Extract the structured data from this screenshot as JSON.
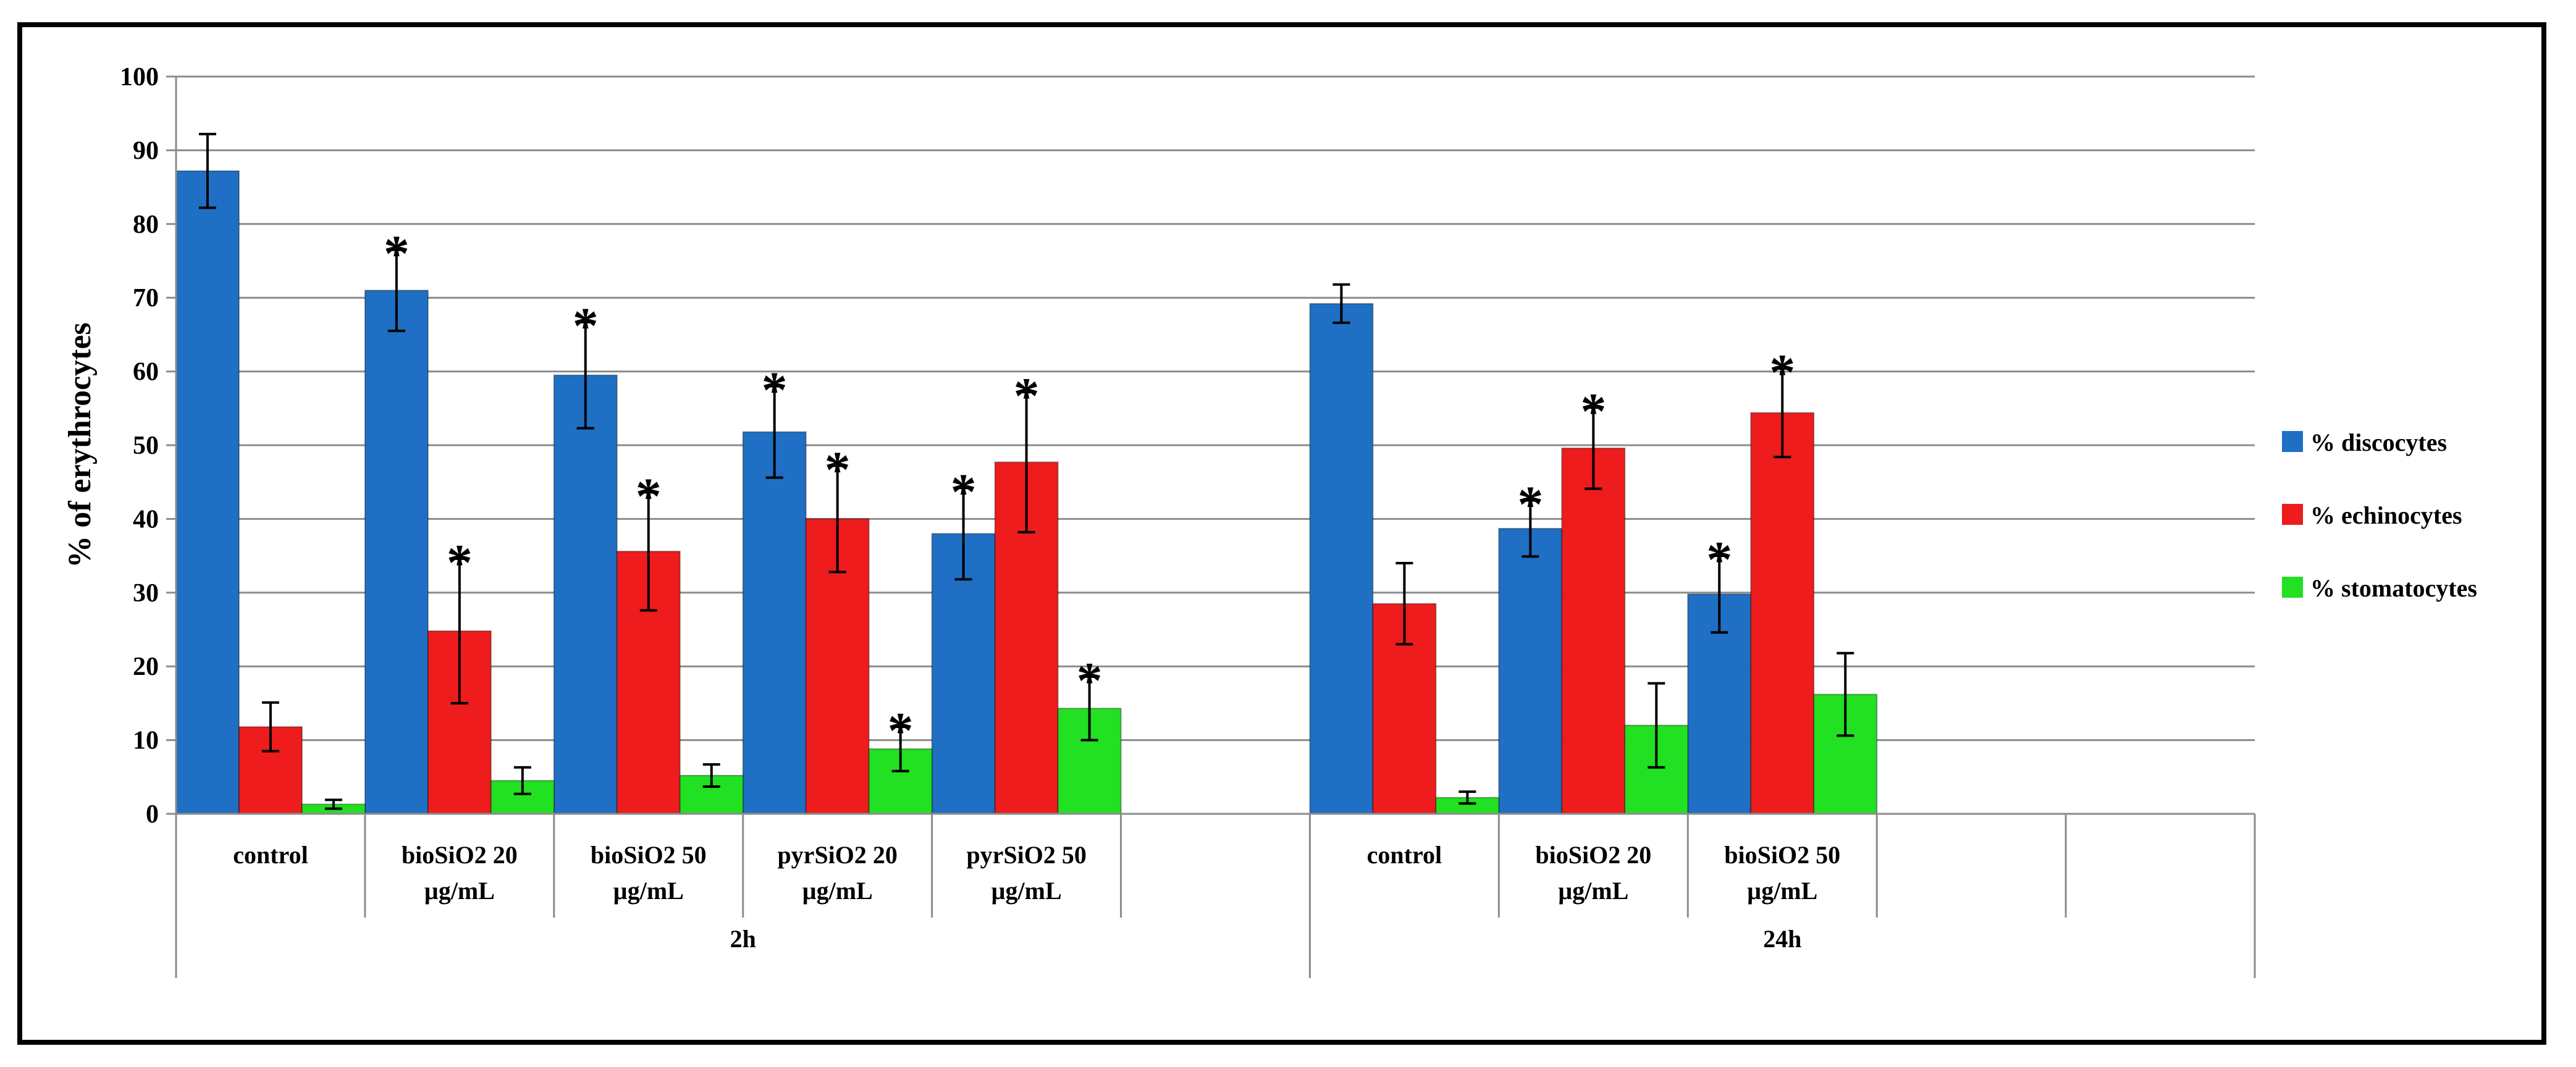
{
  "chart_data": {
    "type": "bar",
    "title": "",
    "ylabel": "% of erythrocytes",
    "ylim": [
      0,
      100
    ],
    "yticks": [
      0,
      10,
      20,
      30,
      40,
      50,
      60,
      70,
      80,
      90,
      100
    ],
    "grid": true,
    "legend_position": "right",
    "groups": [
      {
        "label": "2h",
        "categories": [
          "control",
          "bioSiO2 20\nµg/mL",
          "bioSiO2 50\nµg/mL",
          "pyrSiO2 20\nµg/mL",
          "pyrSiO2 50\nµg/mL",
          ""
        ]
      },
      {
        "label": "24h",
        "categories": [
          "control",
          "bioSiO2 20\nµg/mL",
          "bioSiO2 50\nµg/mL",
          "",
          ""
        ]
      }
    ],
    "series": [
      {
        "name": "% discocytes",
        "color": "#1f6fc4",
        "values": [
          87.2,
          71.0,
          59.5,
          51.8,
          38.0,
          null,
          69.2,
          38.7,
          29.8,
          null,
          null
        ],
        "errors": [
          5.0,
          5.5,
          7.2,
          6.2,
          6.2,
          null,
          2.6,
          3.8,
          5.2,
          null,
          null
        ],
        "significant": [
          false,
          true,
          true,
          true,
          true,
          false,
          false,
          true,
          true,
          false,
          false
        ]
      },
      {
        "name": "% echinocytes",
        "color": "#ee1c1c",
        "values": [
          11.8,
          24.8,
          35.6,
          40.0,
          47.7,
          null,
          28.5,
          49.6,
          54.4,
          null,
          null
        ],
        "errors": [
          3.3,
          9.8,
          8.0,
          7.2,
          9.5,
          null,
          5.5,
          5.5,
          6.0,
          null,
          null
        ],
        "significant": [
          false,
          true,
          true,
          true,
          true,
          false,
          false,
          true,
          true,
          false,
          false
        ]
      },
      {
        "name": "% stomatocytes",
        "color": "#22e022",
        "values": [
          1.3,
          4.5,
          5.2,
          8.8,
          14.3,
          null,
          2.2,
          12.0,
          16.2,
          null,
          null
        ],
        "errors": [
          0.6,
          1.8,
          1.5,
          3.0,
          4.3,
          null,
          0.8,
          5.7,
          5.6,
          null,
          null
        ],
        "significant": [
          false,
          false,
          false,
          true,
          true,
          false,
          false,
          false,
          false,
          false,
          false
        ]
      }
    ],
    "significance_marker": "*"
  }
}
